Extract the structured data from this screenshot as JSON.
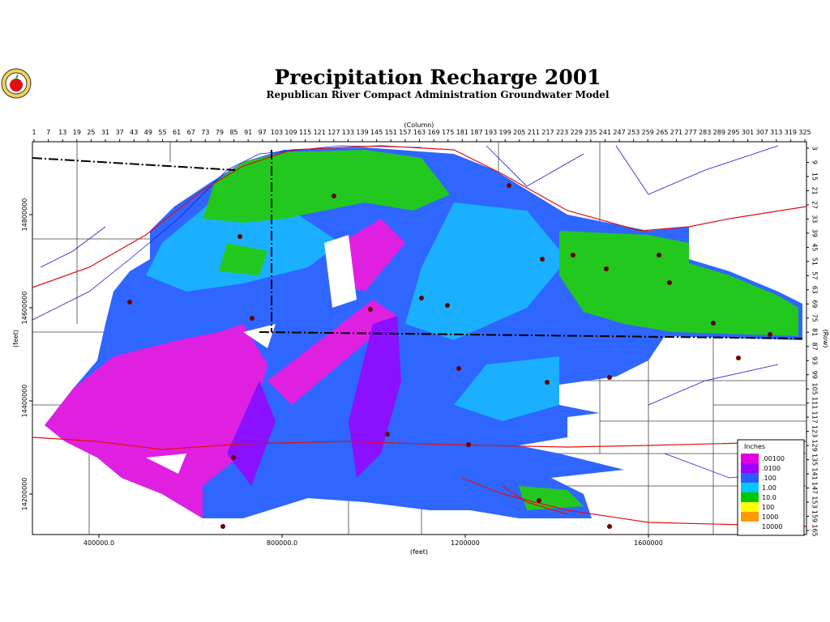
{
  "header": {
    "title": "Precipitation Recharge 2001",
    "subtitle": "Republican River Compact Administration Groundwater Model"
  },
  "axes": {
    "column_label": "(Column)",
    "columns": [
      1,
      7,
      13,
      19,
      25,
      31,
      37,
      43,
      49,
      55,
      61,
      67,
      73,
      79,
      85,
      91,
      97,
      103,
      109,
      115,
      121,
      127,
      133,
      139,
      145,
      151,
      157,
      163,
      169,
      175,
      181,
      187,
      193,
      199,
      205,
      211,
      217,
      223,
      229,
      235,
      241,
      247,
      253,
      259,
      265,
      271,
      277,
      283,
      289,
      295,
      301,
      307,
      313,
      319,
      325
    ],
    "row_label": "(Row)",
    "rows": [
      3,
      9,
      15,
      21,
      27,
      33,
      39,
      45,
      51,
      57,
      63,
      69,
      75,
      81,
      87,
      93,
      99,
      105,
      111,
      117,
      123,
      129,
      135,
      141,
      147,
      153,
      159,
      165
    ],
    "x_label": "(feet)",
    "x_ticks": [
      "400000.0",
      "800000.0",
      "1200000",
      "1600000"
    ],
    "y_label": "(feet)",
    "y_ticks": [
      "14800000",
      "14600000",
      "14400000",
      "14200000"
    ]
  },
  "legend": {
    "title": "Inches",
    "items": [
      {
        "label": ".00100",
        "color": "#e000e0"
      },
      {
        "label": ".0100",
        "color": "#9a00ff"
      },
      {
        "label": ".100",
        "color": "#2a5cff"
      },
      {
        "label": "1.00",
        "color": "#00c8ff"
      },
      {
        "label": "10.0",
        "color": "#00c800"
      },
      {
        "label": "100",
        "color": "#ffff00"
      },
      {
        "label": "1000",
        "color": "#ff9900"
      },
      {
        "label": "10000",
        "color": "#ffffff"
      }
    ]
  }
}
